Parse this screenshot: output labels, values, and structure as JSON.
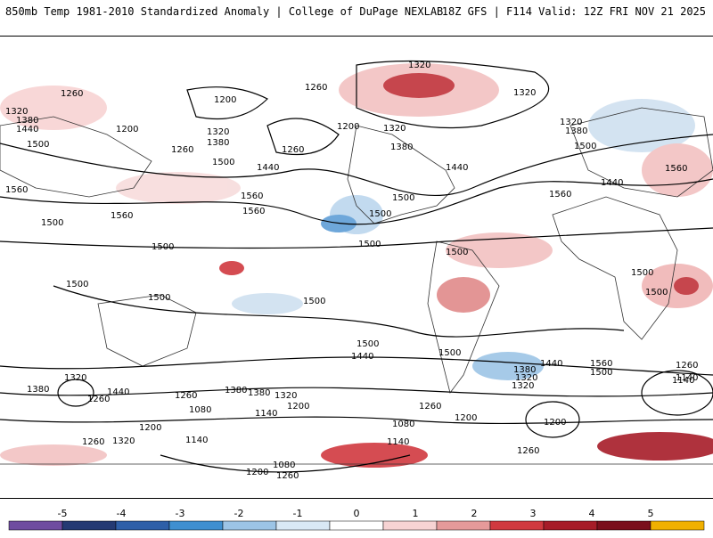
{
  "header": {
    "title_left": "850mb Temp 1981-2010 Standardized Anomaly | College of DuPage NEXLAB",
    "title_right": "18Z GFS | F114 Valid: 12Z FRI NOV 21 2025"
  },
  "map": {
    "contour_labels": [
      "1320",
      "1260",
      "1200",
      "1260",
      "1320",
      "1320",
      "1380",
      "1440",
      "1200",
      "1320",
      "1380",
      "1260",
      "1500",
      "1500",
      "1440",
      "1200",
      "1320",
      "1380",
      "1260",
      "1320",
      "1380",
      "1440",
      "1500",
      "1560",
      "1560",
      "1500",
      "1560",
      "1560",
      "1500",
      "1500",
      "1500",
      "1500",
      "1500",
      "1500",
      "1500",
      "1500",
      "1560",
      "1440",
      "1560",
      "1500",
      "1500",
      "1500",
      "1380",
      "1320",
      "1440",
      "1380",
      "1320",
      "1260",
      "1380",
      "1320",
      "1200",
      "1260",
      "1080",
      "1140",
      "1080",
      "1140",
      "1200",
      "1260",
      "1140",
      "1200",
      "1080",
      "1200",
      "1260",
      "1140",
      "1260",
      "1320",
      "1200",
      "1260",
      "1440",
      "1380",
      "1320",
      "1560",
      "1500",
      "1260",
      "1140",
      "1500",
      "1440"
    ]
  },
  "colorbar": {
    "ticks": [
      "-5",
      "-4",
      "-3",
      "-2",
      "-1",
      "0",
      "1",
      "2",
      "3",
      "4",
      "5"
    ],
    "colors": [
      "#6f4ca0",
      "#243a73",
      "#2e5fa8",
      "#3f8fd0",
      "#9cc4e6",
      "#d9e8f5",
      "#ffffff",
      "#f7d3d3",
      "#e59a9a",
      "#d0393f",
      "#a61c28",
      "#7a0f1c",
      "#f0b000"
    ]
  }
}
